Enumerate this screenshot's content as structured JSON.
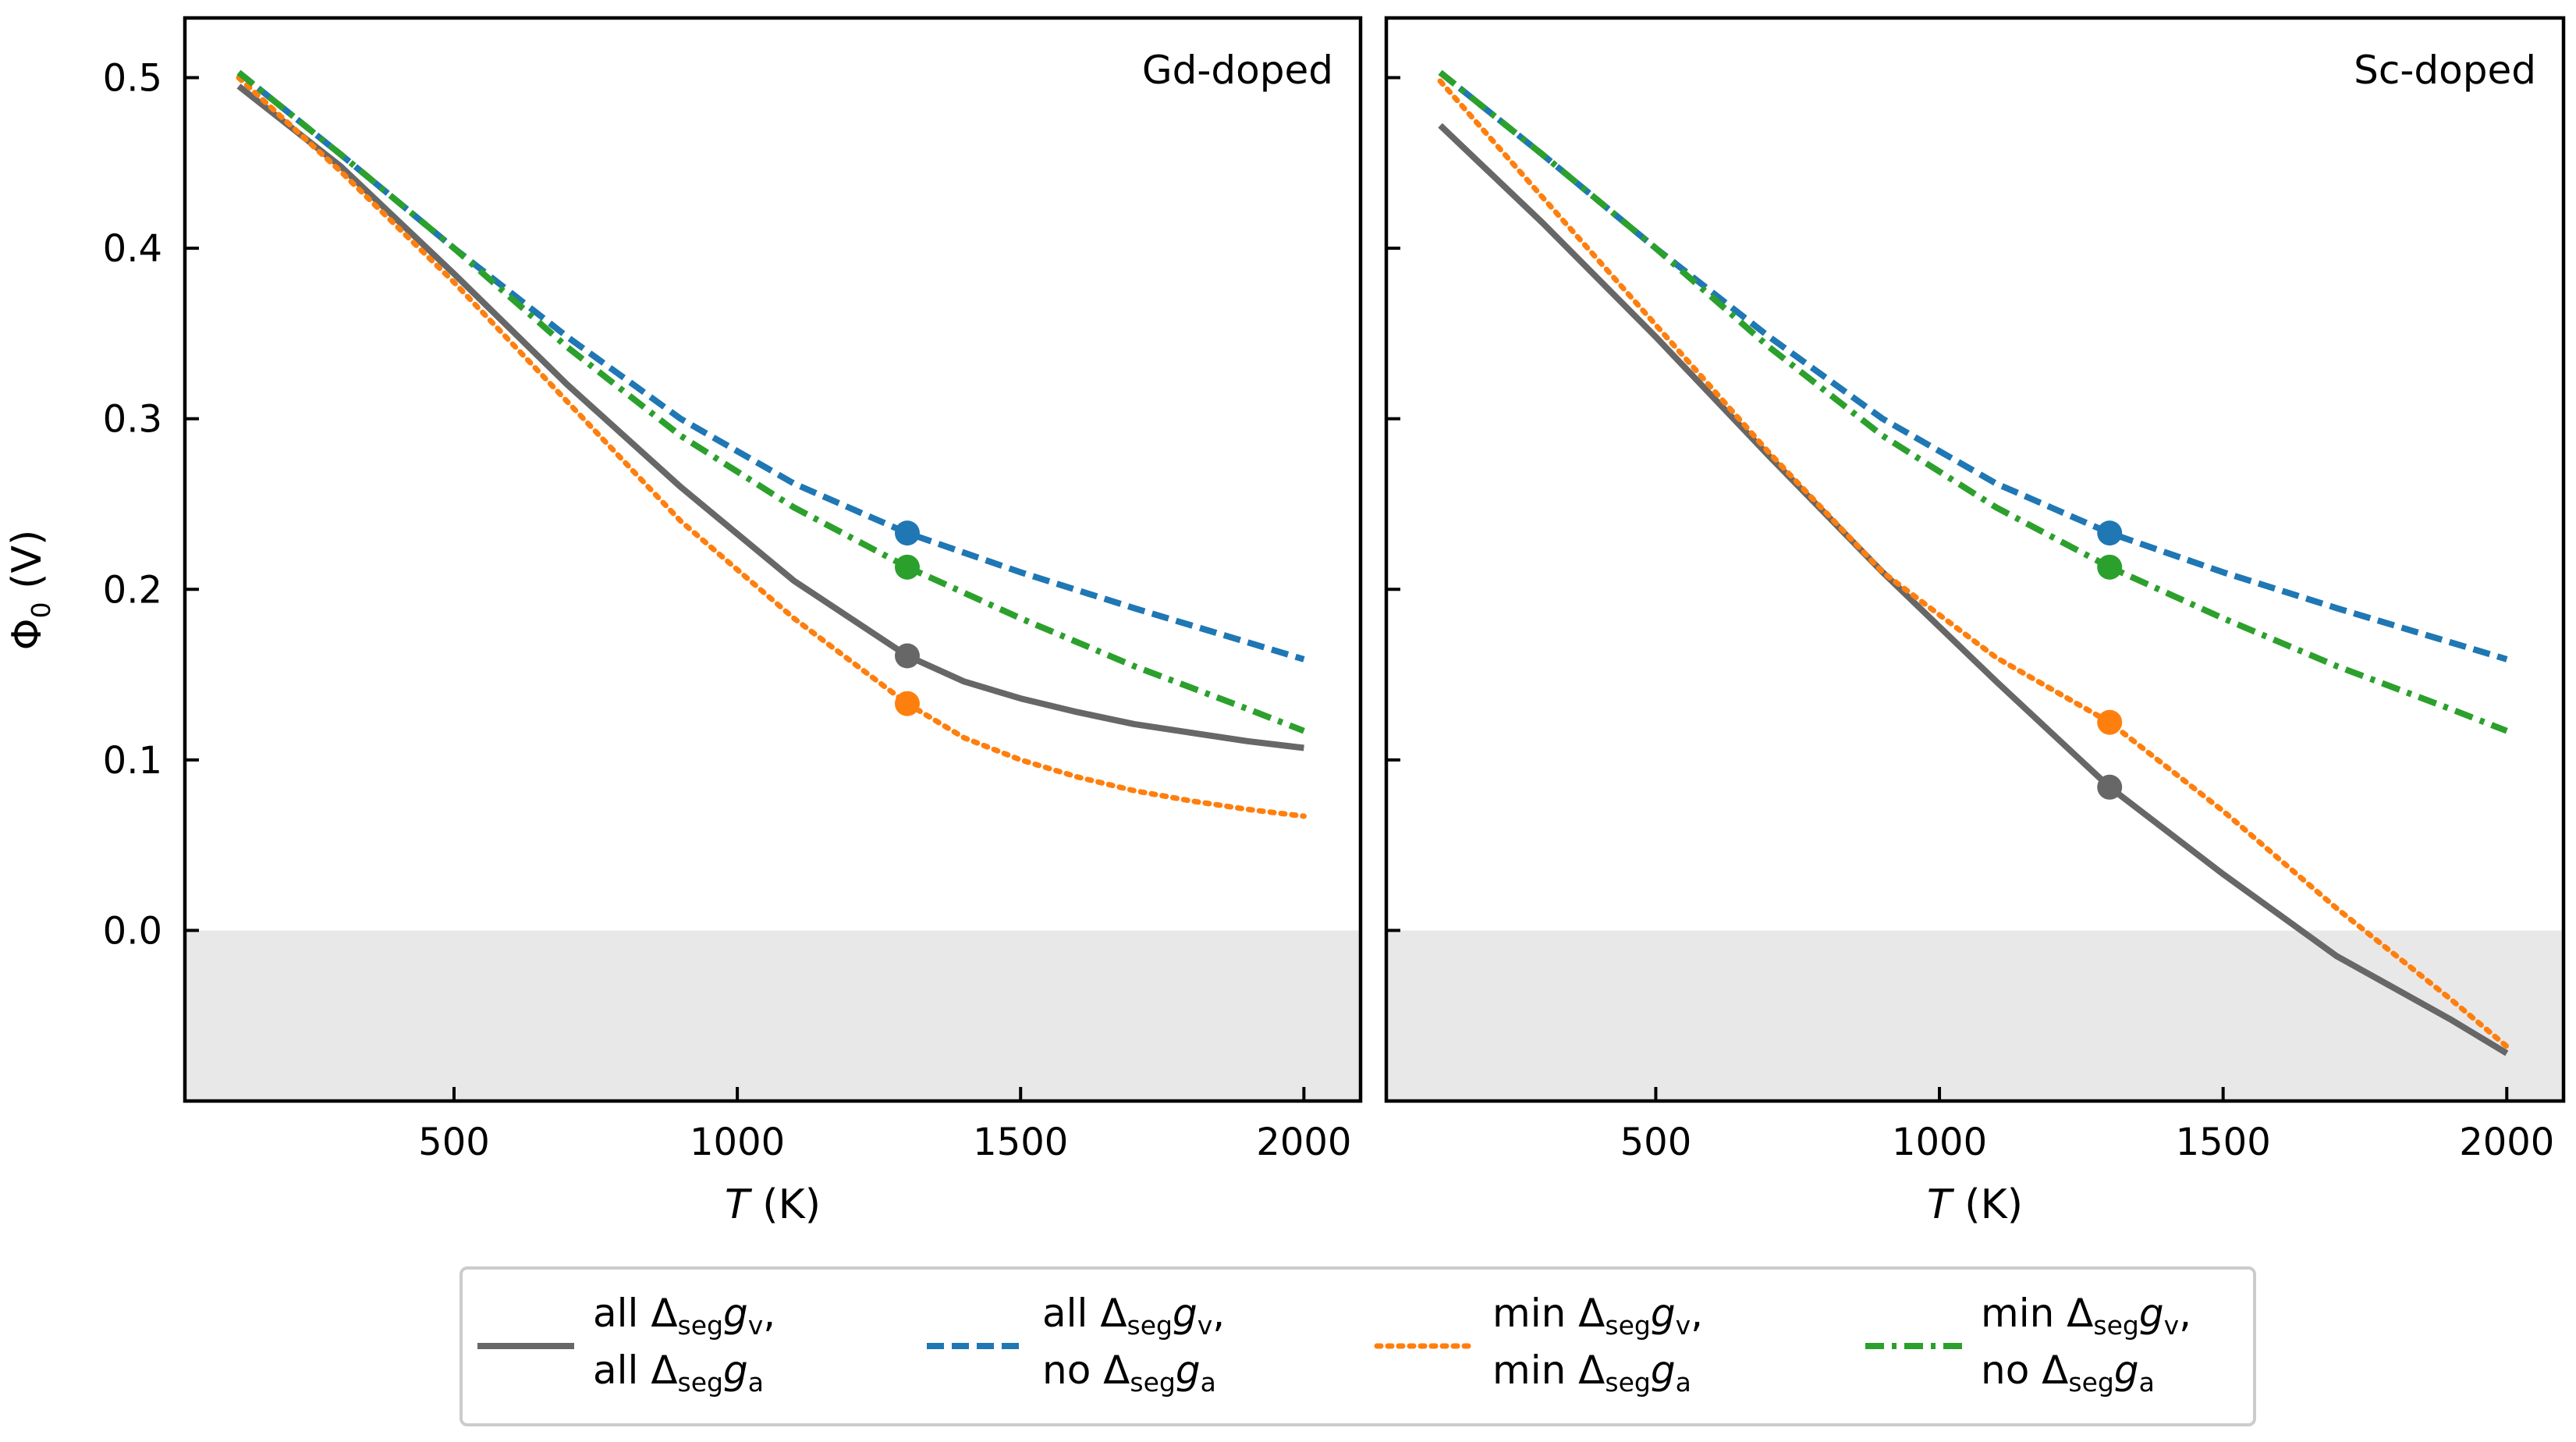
{
  "colors": {
    "gray": "#676767",
    "blue": "#1f77b4",
    "orange": "#ff7f0e",
    "green": "#2ca02c",
    "shade": "#e8e8e8"
  },
  "axes": {
    "ylabel": {
      "symbol": "Φ",
      "subscript": "0",
      "unit": " (V)"
    },
    "xlabel": {
      "symbol": "T",
      "unit": " (K)"
    }
  },
  "legend": {
    "entries": [
      {
        "series": "all_all",
        "line1": {
          "prefix": "all ",
          "sub": "seg",
          "var": "g",
          "varsub": "v",
          "suffix": ","
        },
        "line2": {
          "prefix": "all ",
          "sub": "seg",
          "var": "g",
          "varsub": "a",
          "suffix": ""
        }
      },
      {
        "series": "all_no",
        "line1": {
          "prefix": "all ",
          "sub": "seg",
          "var": "g",
          "varsub": "v",
          "suffix": ","
        },
        "line2": {
          "prefix": "no ",
          "sub": "seg",
          "var": "g",
          "varsub": "a",
          "suffix": ""
        }
      },
      {
        "series": "min_min",
        "line1": {
          "prefix": "min ",
          "sub": "seg",
          "var": "g",
          "varsub": "v",
          "suffix": ","
        },
        "line2": {
          "prefix": "min ",
          "sub": "seg",
          "var": "g",
          "varsub": "a",
          "suffix": ""
        }
      },
      {
        "series": "min_no",
        "line1": {
          "prefix": "min ",
          "sub": "seg",
          "var": "g",
          "varsub": "v",
          "suffix": ","
        },
        "line2": {
          "prefix": "no ",
          "sub": "seg",
          "var": "g",
          "varsub": "a",
          "suffix": ""
        }
      }
    ],
    "delta_symbol": "Δ"
  },
  "chart_data": [
    {
      "type": "line",
      "title": "Gd-doped",
      "xlabel": "T (K)",
      "ylabel": "Φ0 (V)",
      "xlim": [
        25,
        2100
      ],
      "ylim": [
        -0.1,
        0.535
      ],
      "xticks": [
        500,
        1000,
        1500,
        2000
      ],
      "yticks": [
        0.0,
        0.1,
        0.2,
        0.3,
        0.4,
        0.5
      ],
      "shaded_region": {
        "y_from": -0.1,
        "y_to": 0.0
      },
      "series": [
        {
          "name": "all_all",
          "color": "#676767",
          "style": "solid",
          "marker_x": 1300,
          "x": [
            120,
            300,
            500,
            700,
            900,
            1100,
            1300,
            1400,
            1500,
            1600,
            1700,
            1800,
            1900,
            2000
          ],
          "y": [
            0.495,
            0.448,
            0.385,
            0.32,
            0.26,
            0.205,
            0.161,
            0.146,
            0.136,
            0.128,
            0.121,
            0.116,
            0.111,
            0.107
          ]
        },
        {
          "name": "all_no",
          "color": "#1f77b4",
          "style": "dashed",
          "marker_x": 1300,
          "x": [
            120,
            300,
            500,
            700,
            900,
            1100,
            1300,
            1500,
            1700,
            1900,
            2000
          ],
          "y": [
            0.503,
            0.455,
            0.4,
            0.348,
            0.3,
            0.262,
            0.233,
            0.21,
            0.189,
            0.169,
            0.159
          ]
        },
        {
          "name": "min_min",
          "color": "#ff7f0e",
          "style": "dotted",
          "marker_x": 1300,
          "x": [
            120,
            300,
            500,
            700,
            900,
            1100,
            1300,
            1400,
            1500,
            1600,
            1700,
            1800,
            1900,
            2000
          ],
          "y": [
            0.5,
            0.445,
            0.38,
            0.31,
            0.24,
            0.183,
            0.133,
            0.113,
            0.1,
            0.09,
            0.082,
            0.076,
            0.071,
            0.067
          ]
        },
        {
          "name": "min_no",
          "color": "#2ca02c",
          "style": "dashdot",
          "marker_x": 1300,
          "x": [
            120,
            300,
            500,
            700,
            900,
            1100,
            1300,
            1500,
            1700,
            1900,
            2000
          ],
          "y": [
            0.503,
            0.455,
            0.4,
            0.342,
            0.29,
            0.248,
            0.213,
            0.183,
            0.155,
            0.13,
            0.117
          ]
        }
      ]
    },
    {
      "type": "line",
      "title": "Sc-doped",
      "xlabel": "T (K)",
      "ylabel": "Φ0 (V)",
      "xlim": [
        25,
        2100
      ],
      "ylim": [
        -0.1,
        0.535
      ],
      "xticks": [
        500,
        1000,
        1500,
        2000
      ],
      "yticks": [
        0.0,
        0.1,
        0.2,
        0.3,
        0.4,
        0.5
      ],
      "shaded_region": {
        "y_from": -0.1,
        "y_to": 0.0
      },
      "series": [
        {
          "name": "all_all",
          "color": "#676767",
          "style": "solid",
          "marker_x": 1300,
          "x": [
            120,
            300,
            500,
            700,
            900,
            1100,
            1300,
            1500,
            1700,
            1900,
            2000
          ],
          "y": [
            0.472,
            0.415,
            0.348,
            0.278,
            0.21,
            0.146,
            0.084,
            0.033,
            -0.015,
            -0.052,
            -0.072
          ]
        },
        {
          "name": "all_no",
          "color": "#1f77b4",
          "style": "dashed",
          "marker_x": 1300,
          "x": [
            120,
            300,
            500,
            700,
            900,
            1100,
            1300,
            1500,
            1700,
            1900,
            2000
          ],
          "y": [
            0.503,
            0.455,
            0.4,
            0.348,
            0.3,
            0.262,
            0.233,
            0.21,
            0.189,
            0.169,
            0.159
          ]
        },
        {
          "name": "min_min",
          "color": "#ff7f0e",
          "style": "dotted",
          "marker_x": 1300,
          "x": [
            120,
            300,
            500,
            700,
            900,
            1100,
            1300,
            1500,
            1700,
            1900,
            2000
          ],
          "y": [
            0.498,
            0.43,
            0.355,
            0.28,
            0.21,
            0.16,
            0.122,
            0.07,
            0.013,
            -0.04,
            -0.068
          ]
        },
        {
          "name": "min_no",
          "color": "#2ca02c",
          "style": "dashdot",
          "marker_x": 1300,
          "x": [
            120,
            300,
            500,
            700,
            900,
            1100,
            1300,
            1500,
            1700,
            1900,
            2000
          ],
          "y": [
            0.503,
            0.455,
            0.4,
            0.342,
            0.29,
            0.248,
            0.213,
            0.183,
            0.155,
            0.13,
            0.117
          ]
        }
      ]
    }
  ]
}
